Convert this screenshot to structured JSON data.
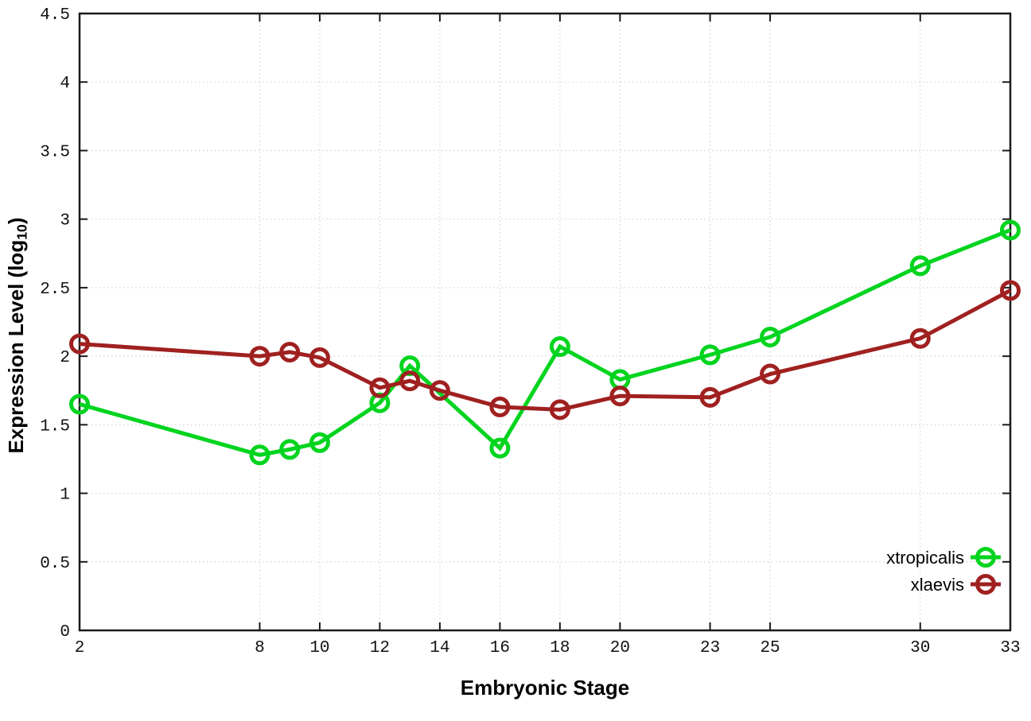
{
  "chart_data": {
    "type": "line",
    "title": "",
    "xlabel": "Embryonic Stage",
    "ylabel": "Expression Level (log10)",
    "ylabel_parts": [
      "Expression Level (log",
      "10",
      ")"
    ],
    "xlim": [
      2,
      33
    ],
    "ylim": [
      0,
      4.5
    ],
    "grid": true,
    "legend_position": "bottom-right",
    "x_ticks": [
      2,
      8,
      10,
      12,
      14,
      16,
      18,
      20,
      23,
      25,
      30,
      33
    ],
    "x_tick_labels": [
      "2",
      "8",
      "10",
      "12",
      "14",
      "16",
      "18",
      "20",
      "23",
      "25",
      "30",
      "33"
    ],
    "y_ticks": [
      0,
      0.5,
      1,
      1.5,
      2,
      2.5,
      3,
      3.5,
      4,
      4.5
    ],
    "y_tick_labels": [
      "0",
      "0.5",
      "1",
      "1.5",
      "2",
      "2.5",
      "3",
      "3.5",
      "4",
      "4.5"
    ],
    "series": [
      {
        "name": "xtropicalis",
        "color": "#00d41e",
        "marker": "open-circle",
        "x": [
          2,
          8,
          9,
          10,
          12,
          13,
          16,
          18,
          20,
          23,
          25,
          30,
          33
        ],
        "y": [
          1.65,
          1.28,
          1.32,
          1.37,
          1.66,
          1.93,
          1.33,
          2.07,
          1.83,
          2.01,
          2.14,
          2.66,
          2.92
        ]
      },
      {
        "name": "xlaevis",
        "color": "#a02020",
        "marker": "open-circle",
        "x": [
          2,
          8,
          9,
          10,
          12,
          13,
          14,
          16,
          18,
          20,
          23,
          25,
          30,
          33
        ],
        "y": [
          2.09,
          2.0,
          2.03,
          1.99,
          1.77,
          1.82,
          1.75,
          1.63,
          1.61,
          1.71,
          1.7,
          1.87,
          2.13,
          2.48
        ]
      }
    ],
    "colors": {
      "background": "#ffffff",
      "border": "#1a1a1a",
      "gridline": "#c9c9c9",
      "tick_text": "#111111",
      "series_green": "#00d41e",
      "series_red": "#a02020"
    }
  }
}
